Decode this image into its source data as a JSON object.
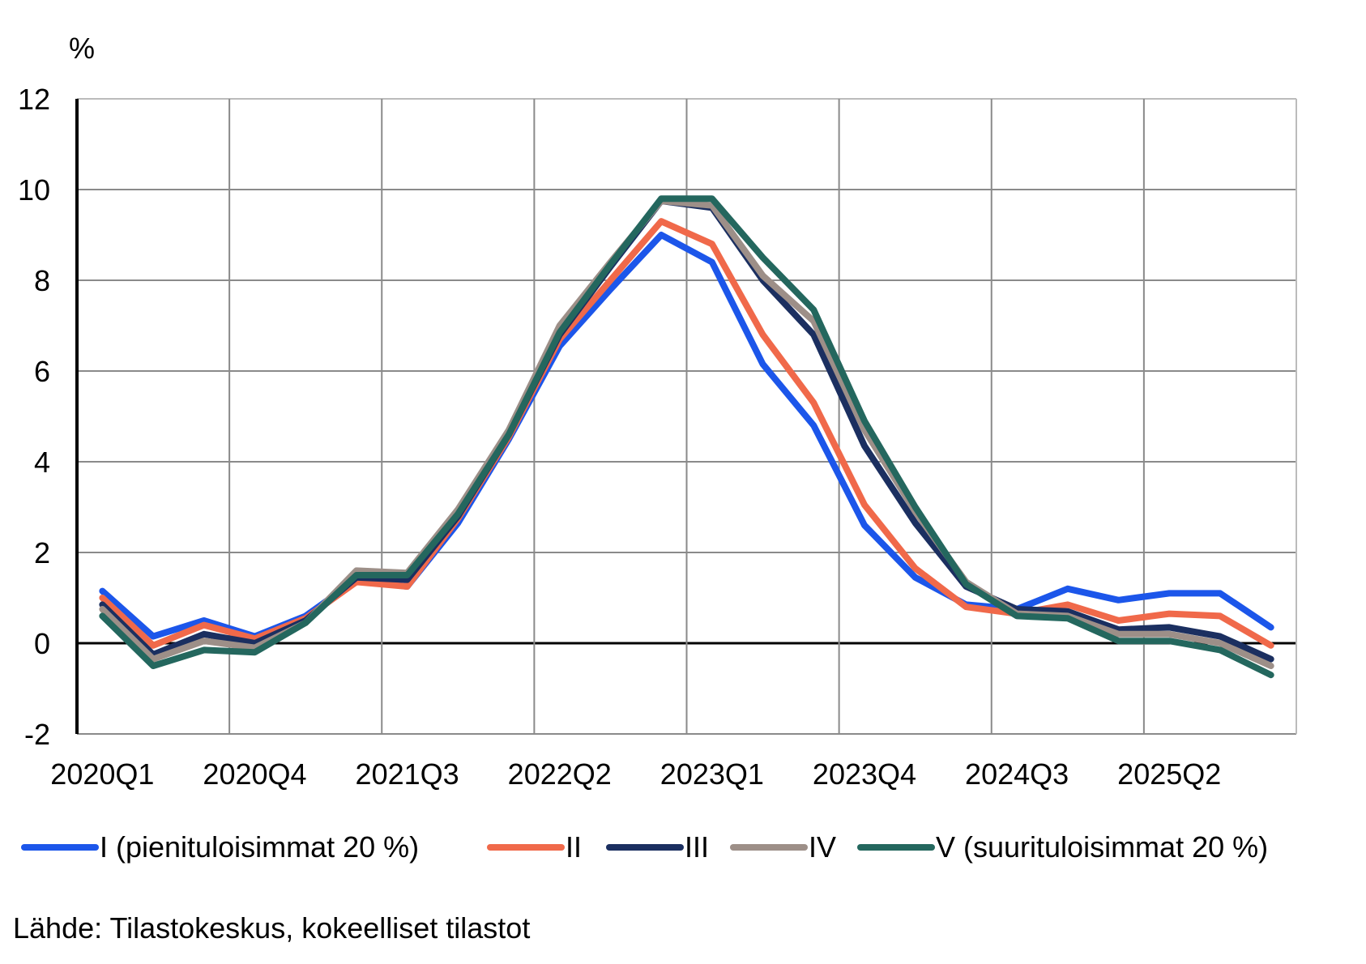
{
  "chart_data": {
    "type": "line",
    "ylabel": "%",
    "ylim": [
      -2,
      12
    ],
    "yticks": [
      -2,
      0,
      2,
      4,
      6,
      8,
      10,
      12
    ],
    "grid": true,
    "legend_placement": "bottom",
    "categories": [
      "2020Q1",
      "2020Q2",
      "2020Q3",
      "2020Q4",
      "2021Q1",
      "2021Q2",
      "2021Q3",
      "2021Q4",
      "2022Q1",
      "2022Q2",
      "2022Q3",
      "2022Q4",
      "2023Q1",
      "2023Q2",
      "2023Q3",
      "2023Q4",
      "2024Q1",
      "2024Q2",
      "2024Q3",
      "2024Q4",
      "2025Q1",
      "2025Q2",
      "2025Q3",
      "2025Q4"
    ],
    "xtick_labels": [
      "2020Q1",
      "2020Q4",
      "2021Q3",
      "2022Q2",
      "2023Q1",
      "2023Q4",
      "2024Q3",
      "2025Q2"
    ],
    "series": [
      {
        "name": "I (pienituloisimmat 20 %)",
        "color": "#1c56ea",
        "values": [
          1.15,
          0.15,
          0.5,
          0.15,
          0.6,
          1.4,
          1.25,
          2.65,
          4.5,
          6.55,
          7.8,
          9.0,
          8.4,
          6.15,
          4.8,
          2.6,
          1.45,
          0.85,
          0.75,
          1.2,
          0.95,
          1.1,
          1.1,
          0.35
        ]
      },
      {
        "name": "II",
        "color": "#f0694a",
        "values": [
          1.0,
          -0.05,
          0.4,
          0.1,
          0.55,
          1.35,
          1.25,
          2.75,
          4.55,
          6.7,
          8.0,
          9.3,
          8.8,
          6.8,
          5.3,
          3.05,
          1.65,
          0.8,
          0.65,
          0.85,
          0.5,
          0.65,
          0.6,
          -0.05
        ]
      },
      {
        "name": "III",
        "color": "#1b2f60",
        "values": [
          0.85,
          -0.25,
          0.2,
          0.0,
          0.5,
          1.45,
          1.4,
          2.8,
          4.6,
          6.8,
          8.3,
          9.75,
          9.6,
          8.0,
          6.8,
          4.35,
          2.65,
          1.25,
          0.75,
          0.7,
          0.3,
          0.35,
          0.15,
          -0.35
        ]
      },
      {
        "name": "IV",
        "color": "#9d8f88",
        "values": [
          0.75,
          -0.35,
          0.05,
          -0.1,
          0.45,
          1.6,
          1.55,
          2.95,
          4.7,
          7.0,
          8.4,
          9.75,
          9.65,
          8.1,
          7.1,
          4.7,
          2.9,
          1.35,
          0.65,
          0.6,
          0.2,
          0.2,
          0.0,
          -0.5
        ]
      },
      {
        "name": "V (suurituloisimmat 20 %)",
        "color": "#24675e",
        "values": [
          0.6,
          -0.5,
          -0.15,
          -0.2,
          0.45,
          1.5,
          1.5,
          2.85,
          4.6,
          6.85,
          8.35,
          9.8,
          9.8,
          8.5,
          7.35,
          4.9,
          3.0,
          1.3,
          0.6,
          0.55,
          0.05,
          0.05,
          -0.15,
          -0.7
        ]
      }
    ]
  },
  "source": "Lähde: Tilastokeskus, kokeelliset tilastot"
}
